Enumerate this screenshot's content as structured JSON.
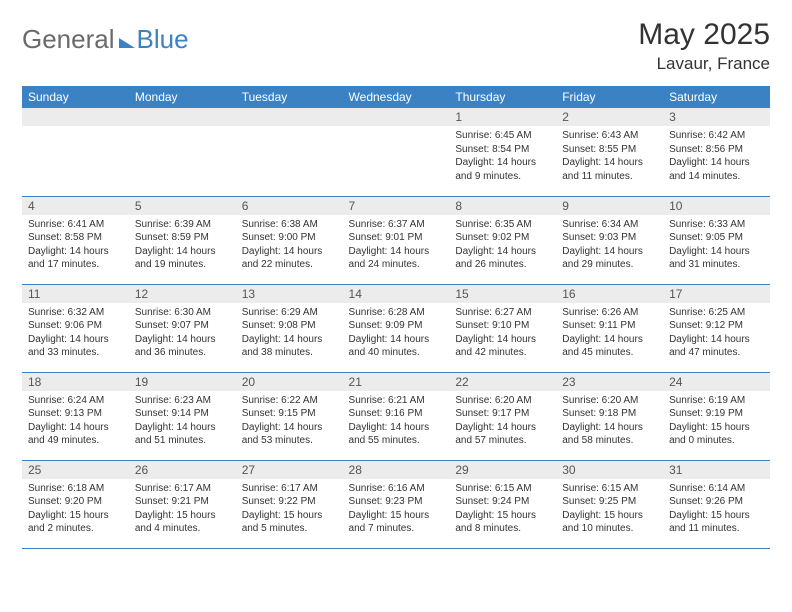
{
  "brand": {
    "part1": "General",
    "part2": "Blue"
  },
  "title": "May 2025",
  "location": "Lavaur, France",
  "colors": {
    "header_bg": "#3b82c4",
    "daynum_bg": "#ececec",
    "text": "#333333"
  },
  "day_headers": [
    "Sunday",
    "Monday",
    "Tuesday",
    "Wednesday",
    "Thursday",
    "Friday",
    "Saturday"
  ],
  "weeks": [
    [
      null,
      null,
      null,
      null,
      {
        "n": "1",
        "sr": "Sunrise: 6:45 AM",
        "ss": "Sunset: 8:54 PM",
        "dl": "Daylight: 14 hours and 9 minutes."
      },
      {
        "n": "2",
        "sr": "Sunrise: 6:43 AM",
        "ss": "Sunset: 8:55 PM",
        "dl": "Daylight: 14 hours and 11 minutes."
      },
      {
        "n": "3",
        "sr": "Sunrise: 6:42 AM",
        "ss": "Sunset: 8:56 PM",
        "dl": "Daylight: 14 hours and 14 minutes."
      }
    ],
    [
      {
        "n": "4",
        "sr": "Sunrise: 6:41 AM",
        "ss": "Sunset: 8:58 PM",
        "dl": "Daylight: 14 hours and 17 minutes."
      },
      {
        "n": "5",
        "sr": "Sunrise: 6:39 AM",
        "ss": "Sunset: 8:59 PM",
        "dl": "Daylight: 14 hours and 19 minutes."
      },
      {
        "n": "6",
        "sr": "Sunrise: 6:38 AM",
        "ss": "Sunset: 9:00 PM",
        "dl": "Daylight: 14 hours and 22 minutes."
      },
      {
        "n": "7",
        "sr": "Sunrise: 6:37 AM",
        "ss": "Sunset: 9:01 PM",
        "dl": "Daylight: 14 hours and 24 minutes."
      },
      {
        "n": "8",
        "sr": "Sunrise: 6:35 AM",
        "ss": "Sunset: 9:02 PM",
        "dl": "Daylight: 14 hours and 26 minutes."
      },
      {
        "n": "9",
        "sr": "Sunrise: 6:34 AM",
        "ss": "Sunset: 9:03 PM",
        "dl": "Daylight: 14 hours and 29 minutes."
      },
      {
        "n": "10",
        "sr": "Sunrise: 6:33 AM",
        "ss": "Sunset: 9:05 PM",
        "dl": "Daylight: 14 hours and 31 minutes."
      }
    ],
    [
      {
        "n": "11",
        "sr": "Sunrise: 6:32 AM",
        "ss": "Sunset: 9:06 PM",
        "dl": "Daylight: 14 hours and 33 minutes."
      },
      {
        "n": "12",
        "sr": "Sunrise: 6:30 AM",
        "ss": "Sunset: 9:07 PM",
        "dl": "Daylight: 14 hours and 36 minutes."
      },
      {
        "n": "13",
        "sr": "Sunrise: 6:29 AM",
        "ss": "Sunset: 9:08 PM",
        "dl": "Daylight: 14 hours and 38 minutes."
      },
      {
        "n": "14",
        "sr": "Sunrise: 6:28 AM",
        "ss": "Sunset: 9:09 PM",
        "dl": "Daylight: 14 hours and 40 minutes."
      },
      {
        "n": "15",
        "sr": "Sunrise: 6:27 AM",
        "ss": "Sunset: 9:10 PM",
        "dl": "Daylight: 14 hours and 42 minutes."
      },
      {
        "n": "16",
        "sr": "Sunrise: 6:26 AM",
        "ss": "Sunset: 9:11 PM",
        "dl": "Daylight: 14 hours and 45 minutes."
      },
      {
        "n": "17",
        "sr": "Sunrise: 6:25 AM",
        "ss": "Sunset: 9:12 PM",
        "dl": "Daylight: 14 hours and 47 minutes."
      }
    ],
    [
      {
        "n": "18",
        "sr": "Sunrise: 6:24 AM",
        "ss": "Sunset: 9:13 PM",
        "dl": "Daylight: 14 hours and 49 minutes."
      },
      {
        "n": "19",
        "sr": "Sunrise: 6:23 AM",
        "ss": "Sunset: 9:14 PM",
        "dl": "Daylight: 14 hours and 51 minutes."
      },
      {
        "n": "20",
        "sr": "Sunrise: 6:22 AM",
        "ss": "Sunset: 9:15 PM",
        "dl": "Daylight: 14 hours and 53 minutes."
      },
      {
        "n": "21",
        "sr": "Sunrise: 6:21 AM",
        "ss": "Sunset: 9:16 PM",
        "dl": "Daylight: 14 hours and 55 minutes."
      },
      {
        "n": "22",
        "sr": "Sunrise: 6:20 AM",
        "ss": "Sunset: 9:17 PM",
        "dl": "Daylight: 14 hours and 57 minutes."
      },
      {
        "n": "23",
        "sr": "Sunrise: 6:20 AM",
        "ss": "Sunset: 9:18 PM",
        "dl": "Daylight: 14 hours and 58 minutes."
      },
      {
        "n": "24",
        "sr": "Sunrise: 6:19 AM",
        "ss": "Sunset: 9:19 PM",
        "dl": "Daylight: 15 hours and 0 minutes."
      }
    ],
    [
      {
        "n": "25",
        "sr": "Sunrise: 6:18 AM",
        "ss": "Sunset: 9:20 PM",
        "dl": "Daylight: 15 hours and 2 minutes."
      },
      {
        "n": "26",
        "sr": "Sunrise: 6:17 AM",
        "ss": "Sunset: 9:21 PM",
        "dl": "Daylight: 15 hours and 4 minutes."
      },
      {
        "n": "27",
        "sr": "Sunrise: 6:17 AM",
        "ss": "Sunset: 9:22 PM",
        "dl": "Daylight: 15 hours and 5 minutes."
      },
      {
        "n": "28",
        "sr": "Sunrise: 6:16 AM",
        "ss": "Sunset: 9:23 PM",
        "dl": "Daylight: 15 hours and 7 minutes."
      },
      {
        "n": "29",
        "sr": "Sunrise: 6:15 AM",
        "ss": "Sunset: 9:24 PM",
        "dl": "Daylight: 15 hours and 8 minutes."
      },
      {
        "n": "30",
        "sr": "Sunrise: 6:15 AM",
        "ss": "Sunset: 9:25 PM",
        "dl": "Daylight: 15 hours and 10 minutes."
      },
      {
        "n": "31",
        "sr": "Sunrise: 6:14 AM",
        "ss": "Sunset: 9:26 PM",
        "dl": "Daylight: 15 hours and 11 minutes."
      }
    ]
  ]
}
